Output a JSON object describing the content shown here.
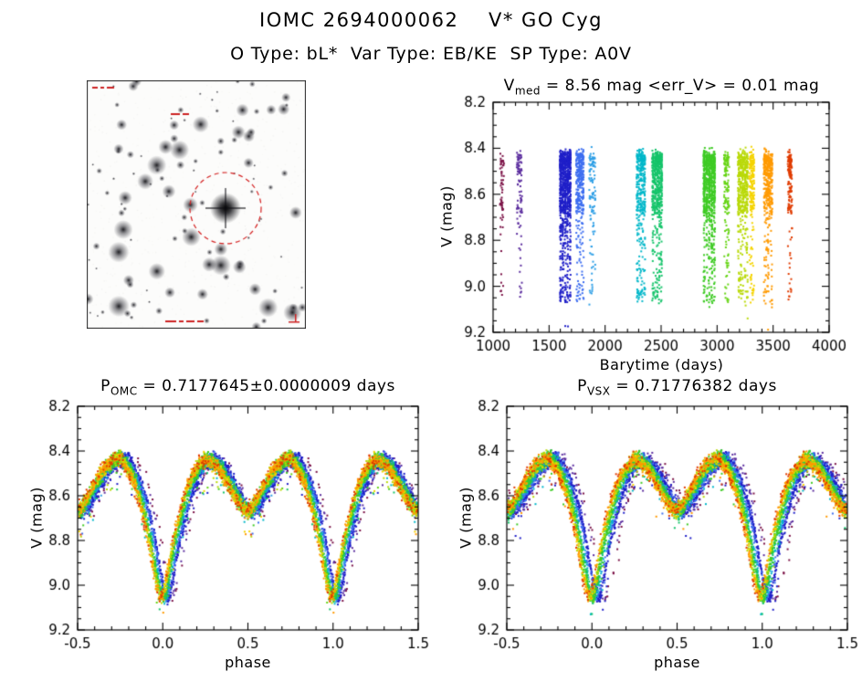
{
  "header": {
    "title": "IOMC 2694000062    V* GO Cyg",
    "subtitle": "O Type: bL*  Var Type: EB/KE  SP Type: A0V"
  },
  "finder": {
    "marker_color": "#d42020",
    "annotation_color": "#cc2222"
  },
  "chart_data": {
    "lightcurve_phase_mag": [
      [
        0.0,
        9.06
      ],
      [
        0.02,
        9.02
      ],
      [
        0.04,
        8.93
      ],
      [
        0.06,
        8.84
      ],
      [
        0.08,
        8.77
      ],
      [
        0.1,
        8.71
      ],
      [
        0.13,
        8.62
      ],
      [
        0.16,
        8.55
      ],
      [
        0.19,
        8.5
      ],
      [
        0.22,
        8.46
      ],
      [
        0.25,
        8.44
      ],
      [
        0.28,
        8.44
      ],
      [
        0.31,
        8.46
      ],
      [
        0.34,
        8.48
      ],
      [
        0.37,
        8.52
      ],
      [
        0.4,
        8.56
      ],
      [
        0.43,
        8.6
      ],
      [
        0.46,
        8.64
      ],
      [
        0.48,
        8.66
      ],
      [
        0.5,
        8.67
      ],
      [
        0.52,
        8.66
      ],
      [
        0.54,
        8.64
      ],
      [
        0.57,
        8.6
      ],
      [
        0.6,
        8.56
      ],
      [
        0.63,
        8.52
      ],
      [
        0.66,
        8.48
      ],
      [
        0.69,
        8.46
      ],
      [
        0.72,
        8.44
      ],
      [
        0.75,
        8.43
      ],
      [
        0.78,
        8.45
      ],
      [
        0.81,
        8.49
      ],
      [
        0.84,
        8.54
      ],
      [
        0.87,
        8.61
      ],
      [
        0.9,
        8.7
      ],
      [
        0.92,
        8.77
      ],
      [
        0.94,
        8.86
      ],
      [
        0.96,
        8.95
      ],
      [
        0.98,
        9.02
      ],
      [
        1.0,
        9.06
      ]
    ],
    "epoch_clusters": [
      {
        "x": 1080,
        "halfwidth": 12,
        "n": 60,
        "color": "#7a1045",
        "phase_shift": 0.065
      },
      {
        "x": 1235,
        "halfwidth": 18,
        "n": 95,
        "color": "#5b2d9e",
        "phase_shift": 0.055
      },
      {
        "x": 1645,
        "halfwidth": 42,
        "n": 900,
        "color": "#1f1fc8",
        "phase_shift": 0.03
      },
      {
        "x": 1775,
        "halfwidth": 28,
        "n": 330,
        "color": "#3d6ef0",
        "phase_shift": 0.022
      },
      {
        "x": 1885,
        "halfwidth": 22,
        "n": 110,
        "color": "#2e9fe6",
        "phase_shift": 0.018
      },
      {
        "x": 2320,
        "halfwidth": 32,
        "n": 360,
        "color": "#00b7c9",
        "phase_shift": 0.01
      },
      {
        "x": 2465,
        "halfwidth": 38,
        "n": 560,
        "color": "#15c46a",
        "phase_shift": 0.006
      },
      {
        "x": 2930,
        "halfwidth": 45,
        "n": 820,
        "color": "#3ecb24",
        "phase_shift": 0.0
      },
      {
        "x": 3085,
        "halfwidth": 18,
        "n": 150,
        "color": "#66d414",
        "phase_shift": -0.003
      },
      {
        "x": 3230,
        "halfwidth": 38,
        "n": 480,
        "color": "#b9d908",
        "phase_shift": -0.006
      },
      {
        "x": 3310,
        "halfwidth": 16,
        "n": 190,
        "color": "#f5d400",
        "phase_shift": -0.009
      },
      {
        "x": 3455,
        "halfwidth": 32,
        "n": 400,
        "color": "#ff9a00",
        "phase_shift": -0.013
      },
      {
        "x": 3650,
        "halfwidth": 14,
        "n": 150,
        "color": "#e03c00",
        "phase_shift": -0.017
      }
    ],
    "charts": [
      {
        "id": "timeseries",
        "type": "scatter",
        "title": {
          "pre": "V",
          "sub": "med",
          "post": " = 8.56 mag <err_V> = 0.01 mag"
        },
        "xlabel": "Barytime (days)",
        "ylabel": "V (mag)",
        "xlim": [
          1000,
          4000
        ],
        "xticks": [
          "1000",
          "1500",
          "2000",
          "2500",
          "3000",
          "3500",
          "4000"
        ],
        "x_minor_step": 100,
        "ylim": [
          8.2,
          9.2
        ],
        "yticks": [
          "8.2",
          "8.4",
          "8.6",
          "8.8",
          "9.0",
          "9.2"
        ],
        "y_minor_step": 0.05,
        "y_axis_direction": "inverted"
      },
      {
        "id": "phase_omc",
        "type": "scatter",
        "title": {
          "pre": "P",
          "sub": "OMC",
          "post": " = 0.7177645±0.0000009 days"
        },
        "xlabel": "phase",
        "ylabel": "V (mag)",
        "xlim": [
          -0.5,
          1.5
        ],
        "xticks": [
          "-0.5",
          "0.0",
          "0.5",
          "1.0",
          "1.5"
        ],
        "x_minor_step": 0.1,
        "ylim": [
          8.2,
          9.2
        ],
        "yticks": [
          "8.2",
          "8.4",
          "8.6",
          "8.8",
          "9.0",
          "9.2"
        ],
        "y_minor_step": 0.05,
        "phase_spread": 1.0,
        "y_axis_direction": "inverted"
      },
      {
        "id": "phase_vsx",
        "type": "scatter",
        "title": {
          "pre": "P",
          "sub": "VSX",
          "post": " = 0.71776382 days"
        },
        "xlabel": "phase",
        "ylabel": "V (mag)",
        "xlim": [
          -0.5,
          1.5
        ],
        "xticks": [
          "-0.5",
          "0.0",
          "0.5",
          "1.0",
          "1.5"
        ],
        "x_minor_step": 0.1,
        "ylim": [
          8.2,
          9.2
        ],
        "yticks": [
          "8.2",
          "8.4",
          "8.6",
          "8.8",
          "9.0",
          "9.2"
        ],
        "y_minor_step": 0.05,
        "phase_spread": 1.3,
        "y_axis_direction": "inverted"
      }
    ]
  }
}
